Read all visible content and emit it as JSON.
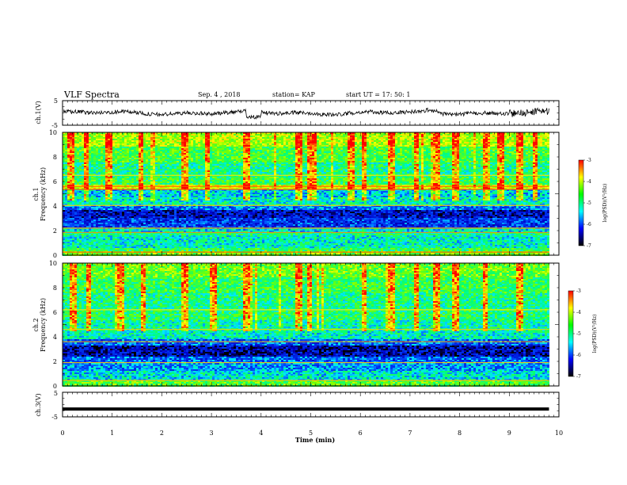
{
  "header": {
    "title": "VLF Spectra",
    "date": "Sep. 4 , 2018",
    "station": "station= KAP",
    "start": "start  UT =   17: 50: 1"
  },
  "colorbar": {
    "label": "log(PSD)(V²/Hz)",
    "ticks": [
      "-3",
      "-4",
      "-5",
      "-6",
      "-7"
    ],
    "colors": [
      "#ff0000",
      "#ffff00",
      "#00ff00",
      "#00ffff",
      "#0000ff",
      "#000000"
    ]
  },
  "chart_data": [
    {
      "type": "line",
      "name": "ch1-waveform",
      "ylabel": "ch.1(V)",
      "ylim": [
        -5,
        5
      ],
      "yticks": [
        "5",
        "-5"
      ],
      "xlim": [
        0,
        10
      ]
    },
    {
      "type": "heatmap",
      "name": "ch1-spectrogram",
      "ylabel_line1": "ch.1",
      "ylabel_line2": "Frequency (kHz)",
      "ylim": [
        0,
        10
      ],
      "yticks": [
        "10",
        "8",
        "6",
        "4",
        "2",
        "0"
      ],
      "xlim": [
        0,
        10
      ],
      "zlim": [
        -7,
        -3
      ],
      "data_end_min": 9.8,
      "bands": [
        {
          "f0": 0.0,
          "f1": 0.3,
          "level": -4.6
        },
        {
          "f0": 0.3,
          "f1": 0.6,
          "level": -5.0
        },
        {
          "f0": 0.6,
          "f1": 1.6,
          "level": -5.4
        },
        {
          "f0": 1.6,
          "f1": 1.9,
          "level": -5.2
        },
        {
          "f0": 1.9,
          "f1": 2.3,
          "level": -5.5
        },
        {
          "f0": 2.3,
          "f1": 3.0,
          "level": -6.2
        },
        {
          "f0": 3.0,
          "f1": 3.7,
          "level": -6.5
        },
        {
          "f0": 3.7,
          "f1": 4.1,
          "level": -5.9
        },
        {
          "f0": 4.1,
          "f1": 4.7,
          "level": -5.4
        },
        {
          "f0": 4.7,
          "f1": 5.3,
          "level": -5.6
        },
        {
          "f0": 5.3,
          "f1": 5.7,
          "level": -4.2
        },
        {
          "f0": 5.7,
          "f1": 6.4,
          "level": -5.0
        },
        {
          "f0": 6.4,
          "f1": 7.5,
          "level": -5.2
        },
        {
          "f0": 7.5,
          "f1": 8.8,
          "level": -4.9
        },
        {
          "f0": 8.8,
          "f1": 10.0,
          "level": -4.4
        }
      ],
      "lines": [
        {
          "f": 0.25,
          "level": -3.4
        },
        {
          "f": 1.85,
          "level": -3.6
        },
        {
          "f": 2.2,
          "level": -3.6
        },
        {
          "f": 4.05,
          "level": -3.9
        },
        {
          "f": 5.35,
          "level": -3.3
        },
        {
          "f": 5.6,
          "level": -3.4
        },
        {
          "f": 6.5,
          "level": -4.0
        }
      ],
      "bursts_min": [
        0.15,
        0.45,
        0.9,
        1.55,
        2.45,
        2.9,
        3.7,
        4.75,
        4.95,
        5.05,
        5.8,
        6.05,
        6.6,
        7.1,
        7.5,
        7.9,
        8.5,
        8.8,
        9.2,
        9.5
      ]
    },
    {
      "type": "heatmap",
      "name": "ch2-spectrogram",
      "ylabel_line1": "ch.2",
      "ylabel_line2": "Frequency (kHz)",
      "ylim": [
        0,
        10
      ],
      "yticks": [
        "10",
        "8",
        "6",
        "4",
        "2",
        "0"
      ],
      "xlim": [
        0,
        10
      ],
      "zlim": [
        -7,
        -3
      ],
      "data_end_min": 9.8,
      "bands": [
        {
          "f0": 0.0,
          "f1": 0.4,
          "level": -4.8
        },
        {
          "f0": 0.4,
          "f1": 1.2,
          "level": -5.5
        },
        {
          "f0": 1.2,
          "f1": 1.9,
          "level": -5.8
        },
        {
          "f0": 1.9,
          "f1": 2.4,
          "level": -6.0
        },
        {
          "f0": 2.4,
          "f1": 3.3,
          "level": -6.6
        },
        {
          "f0": 3.3,
          "f1": 3.8,
          "level": -6.0
        },
        {
          "f0": 3.8,
          "f1": 4.5,
          "level": -5.4
        },
        {
          "f0": 4.5,
          "f1": 5.4,
          "level": -5.3
        },
        {
          "f0": 5.4,
          "f1": 6.3,
          "level": -5.1
        },
        {
          "f0": 6.3,
          "f1": 7.6,
          "level": -5.2
        },
        {
          "f0": 7.6,
          "f1": 8.8,
          "level": -5.0
        },
        {
          "f0": 8.8,
          "f1": 10.0,
          "level": -4.7
        }
      ],
      "lines": [
        {
          "f": 0.45,
          "level": -3.8
        },
        {
          "f": 1.9,
          "level": -3.9
        },
        {
          "f": 3.6,
          "level": -3.7
        },
        {
          "f": 4.6,
          "level": -3.9
        },
        {
          "f": 6.2,
          "level": -4.0
        }
      ],
      "bursts_min": [
        0.2,
        0.5,
        1.15,
        1.6,
        2.45,
        3.0,
        3.7,
        4.75,
        4.95,
        6.05,
        6.6,
        7.1,
        7.5,
        7.9,
        8.5,
        9.2
      ]
    },
    {
      "type": "line",
      "name": "ch3-waveform",
      "ylabel": "ch.3(V)",
      "ylim": [
        -5,
        5
      ],
      "yticks": [
        "5",
        "-5"
      ],
      "xlim": [
        0,
        10
      ],
      "x": [
        0,
        9.8
      ],
      "y": [
        -1.8,
        -1.8
      ]
    }
  ],
  "xaxis": {
    "label": "Time (min)",
    "ticks": [
      "0",
      "1",
      "2",
      "3",
      "4",
      "5",
      "6",
      "7",
      "8",
      "9",
      "10"
    ],
    "lim": [
      0,
      10
    ]
  }
}
